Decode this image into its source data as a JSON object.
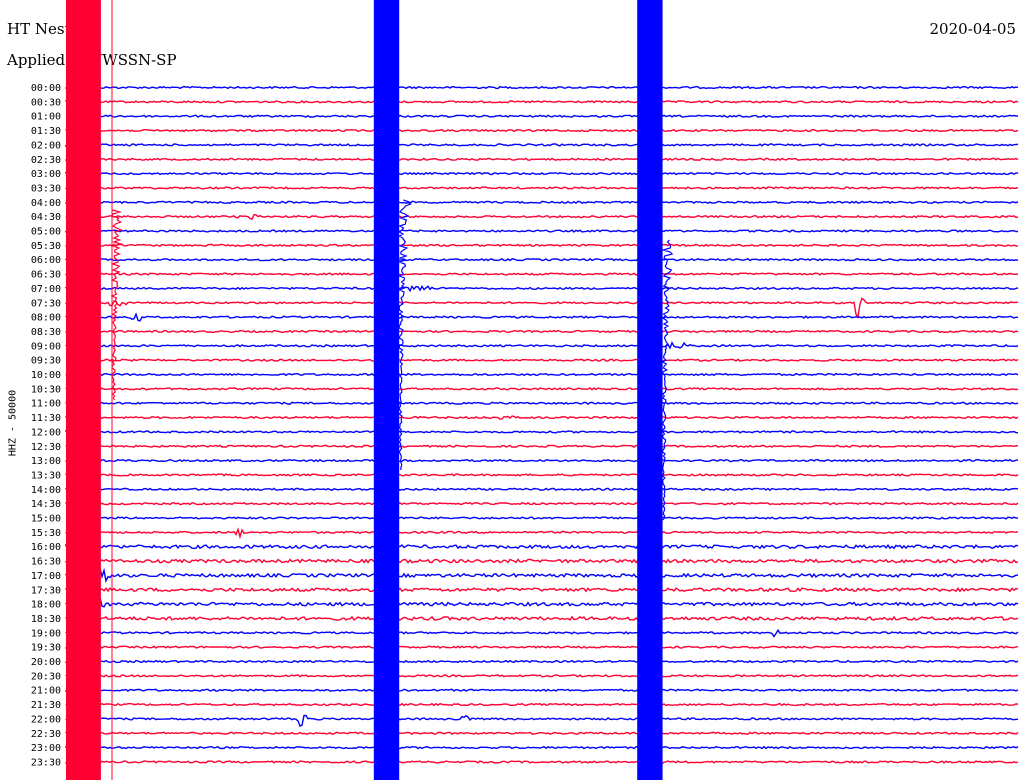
{
  "header": {
    "station": "HT Nesto",
    "filter_label": "Applied      r: WWSSN-SP",
    "date": "2020-04-05"
  },
  "chart_data": {
    "type": "line",
    "title": "HT Nesto",
    "subtitle": "Applied      r: WWSSN-SP",
    "date": "2020-04-05",
    "ylabel": "HHZ - 50000",
    "row_labels": [
      "00:00",
      "00:30",
      "01:00",
      "01:30",
      "02:00",
      "02:30",
      "03:00",
      "03:30",
      "04:00",
      "04:30",
      "05:00",
      "05:30",
      "06:00",
      "06:30",
      "07:00",
      "07:30",
      "08:00",
      "08:30",
      "09:00",
      "09:30",
      "10:00",
      "10:30",
      "11:00",
      "11:30",
      "12:00",
      "12:30",
      "13:00",
      "13:30",
      "14:00",
      "14:30",
      "15:00",
      "15:30",
      "16:00",
      "16:30",
      "17:00",
      "17:30",
      "18:00",
      "18:30",
      "19:00",
      "19:30",
      "20:00",
      "20:30",
      "21:00",
      "21:30",
      "22:00",
      "22:30",
      "23:00",
      "23:30"
    ],
    "colors": {
      "even_rows": "#0000ff",
      "odd_rows": "#ff0033"
    },
    "grid": false,
    "saturated_spans": [
      {
        "color": "#ff0033",
        "x_minutes": [
          0,
          1.1
        ],
        "label": ""
      },
      {
        "color": "#0000ff",
        "x_minutes": [
          9.7,
          10.5
        ],
        "label": ""
      },
      {
        "color": "#0000ff",
        "x_minutes": [
          18.0,
          18.8
        ],
        "label": ""
      }
    ],
    "events": [
      {
        "row": "04:30",
        "x_minutes": [
          5.3,
          6.3
        ],
        "amp": 0.45
      },
      {
        "row": "07:00",
        "x_minutes": [
          10.6,
          11.6
        ],
        "amp": 0.5
      },
      {
        "row": "07:30",
        "x_minutes": [
          1.2,
          2.0
        ],
        "amp": 0.5
      },
      {
        "row": "08:00",
        "x_minutes": [
          2.0,
          2.4
        ],
        "amp": 0.8
      },
      {
        "row": "09:00",
        "x_minutes": [
          18.8,
          19.8
        ],
        "amp": 0.6
      },
      {
        "row": "11:30",
        "x_minutes": [
          13.3,
          14.2
        ],
        "amp": 0.25
      },
      {
        "row": "15:30",
        "x_minutes": [
          5.3,
          5.6
        ],
        "amp": 0.6
      },
      {
        "row": "17:00",
        "x_minutes": [
          0.7,
          1.6
        ],
        "amp": 0.9
      },
      {
        "row": "18:00",
        "x_minutes": [
          0.4,
          1.3
        ],
        "amp": 0.9
      },
      {
        "row": "19:00",
        "x_minutes": [
          22.2,
          22.5
        ],
        "amp": 1.2
      },
      {
        "row": "22:00",
        "x_minutes": [
          7.3,
          7.6
        ],
        "amp": 1.6
      },
      {
        "row": "22:00",
        "x_minutes": [
          12.3,
          12.8
        ],
        "amp": 0.4
      },
      {
        "row": "07:30",
        "x_minutes": [
          24.8,
          25.2
        ],
        "amp": 2.2
      },
      {
        "row": "23:30",
        "x_minutes": [
          18.0,
          19.1
        ],
        "amp": 0.3
      }
    ],
    "noisy_rows": [
      "16:00",
      "16:30",
      "17:00",
      "17:30",
      "18:00",
      "18:30"
    ]
  }
}
